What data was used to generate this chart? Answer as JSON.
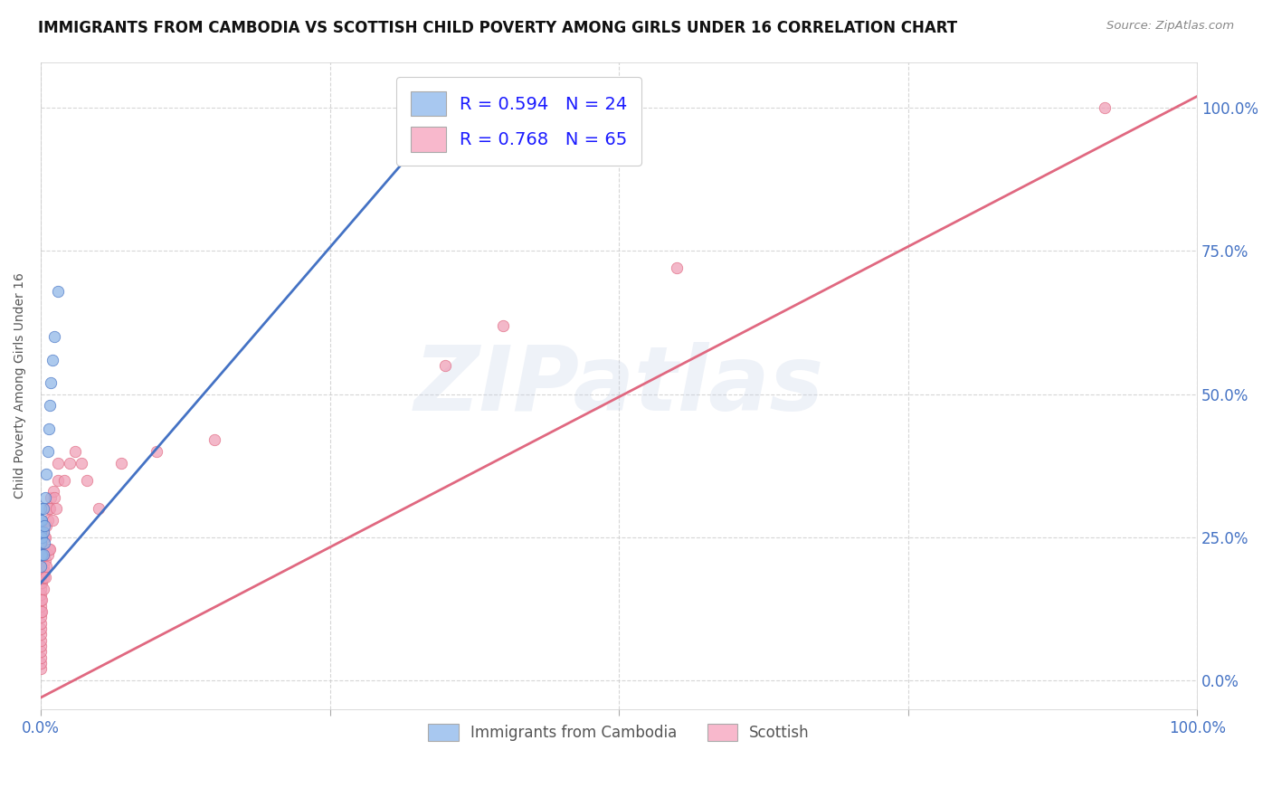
{
  "title": "IMMIGRANTS FROM CAMBODIA VS SCOTTISH CHILD POVERTY AMONG GIRLS UNDER 16 CORRELATION CHART",
  "source": "Source: ZipAtlas.com",
  "ylabel": "Child Poverty Among Girls Under 16",
  "watermark": "ZIPatlas",
  "xlim": [
    0.0,
    1.0
  ],
  "ylim": [
    -0.05,
    1.08
  ],
  "xticks": [
    0.0,
    0.25,
    0.5,
    0.75,
    1.0
  ],
  "xticklabels": [
    "0.0%",
    "",
    "",
    "",
    "100.0%"
  ],
  "yticks": [
    0.0,
    0.25,
    0.5,
    0.75,
    1.0
  ],
  "yticklabels_right": [
    "0.0%",
    "25.0%",
    "50.0%",
    "75.0%",
    "100.0%"
  ],
  "legend_upper": [
    {
      "label": "R = 0.594   N = 24",
      "color": "#a8c8f0"
    },
    {
      "label": "R = 0.768   N = 65",
      "color": "#f8b8cc"
    }
  ],
  "legend_bottom": [
    {
      "label": "Immigrants from Cambodia",
      "color": "#a8c8f0"
    },
    {
      "label": "Scottish",
      "color": "#f8b8cc"
    }
  ],
  "cambodia_scatter_x": [
    0.0,
    0.0,
    0.0,
    0.0,
    0.0,
    0.0,
    0.001,
    0.001,
    0.001,
    0.002,
    0.002,
    0.002,
    0.003,
    0.003,
    0.004,
    0.005,
    0.006,
    0.007,
    0.008,
    0.009,
    0.01,
    0.012,
    0.015,
    0.32
  ],
  "cambodia_scatter_y": [
    0.2,
    0.22,
    0.24,
    0.26,
    0.28,
    0.3,
    0.22,
    0.25,
    0.28,
    0.22,
    0.26,
    0.3,
    0.24,
    0.27,
    0.32,
    0.36,
    0.4,
    0.44,
    0.48,
    0.52,
    0.56,
    0.6,
    0.68,
    0.92
  ],
  "scottish_scatter_x": [
    0.0,
    0.0,
    0.0,
    0.0,
    0.0,
    0.0,
    0.0,
    0.0,
    0.0,
    0.0,
    0.0,
    0.0,
    0.0,
    0.0,
    0.0,
    0.0,
    0.0,
    0.0,
    0.0,
    0.0,
    0.001,
    0.001,
    0.001,
    0.001,
    0.001,
    0.001,
    0.002,
    0.002,
    0.002,
    0.002,
    0.002,
    0.003,
    0.003,
    0.003,
    0.004,
    0.004,
    0.004,
    0.005,
    0.005,
    0.006,
    0.006,
    0.007,
    0.007,
    0.008,
    0.008,
    0.009,
    0.01,
    0.011,
    0.012,
    0.013,
    0.015,
    0.015,
    0.02,
    0.025,
    0.03,
    0.035,
    0.04,
    0.05,
    0.07,
    0.1,
    0.15,
    0.35,
    0.4,
    0.55,
    0.92
  ],
  "scottish_scatter_y": [
    0.02,
    0.03,
    0.04,
    0.05,
    0.06,
    0.07,
    0.08,
    0.09,
    0.1,
    0.11,
    0.12,
    0.13,
    0.14,
    0.15,
    0.16,
    0.17,
    0.18,
    0.19,
    0.2,
    0.21,
    0.12,
    0.14,
    0.17,
    0.19,
    0.22,
    0.25,
    0.16,
    0.18,
    0.2,
    0.23,
    0.26,
    0.19,
    0.22,
    0.25,
    0.18,
    0.21,
    0.25,
    0.2,
    0.27,
    0.22,
    0.28,
    0.23,
    0.3,
    0.23,
    0.3,
    0.32,
    0.28,
    0.33,
    0.32,
    0.3,
    0.35,
    0.38,
    0.35,
    0.38,
    0.4,
    0.38,
    0.35,
    0.3,
    0.38,
    0.4,
    0.42,
    0.55,
    0.62,
    0.72,
    1.0
  ],
  "cambodia_trend_x": [
    0.0,
    0.32
  ],
  "cambodia_trend_y": [
    0.17,
    0.92
  ],
  "cambodia_trend_color": "#4472c4",
  "cambodia_trend_linestyle": "solid",
  "cambodia_trend_linewidth": 2.0,
  "scottish_trend_x": [
    0.0,
    1.0
  ],
  "scottish_trend_y": [
    -0.03,
    1.02
  ],
  "scottish_trend_color": "#e06880",
  "scottish_trend_linestyle": "solid",
  "scottish_trend_linewidth": 2.0,
  "cambodia_color": "#90b8e8",
  "cambodia_edgecolor": "#4472c4",
  "scottish_color": "#f0a0b8",
  "scottish_edgecolor": "#e06880",
  "scatter_size": 80,
  "scatter_alpha": 0.75,
  "title_fontsize": 12,
  "axis_label_fontsize": 10,
  "tick_fontsize": 12,
  "tick_color": "#4472c4",
  "background_color": "#ffffff",
  "grid_color": "#cccccc",
  "watermark_color": "#c8d4e8",
  "watermark_fontsize": 72,
  "watermark_alpha": 0.3
}
